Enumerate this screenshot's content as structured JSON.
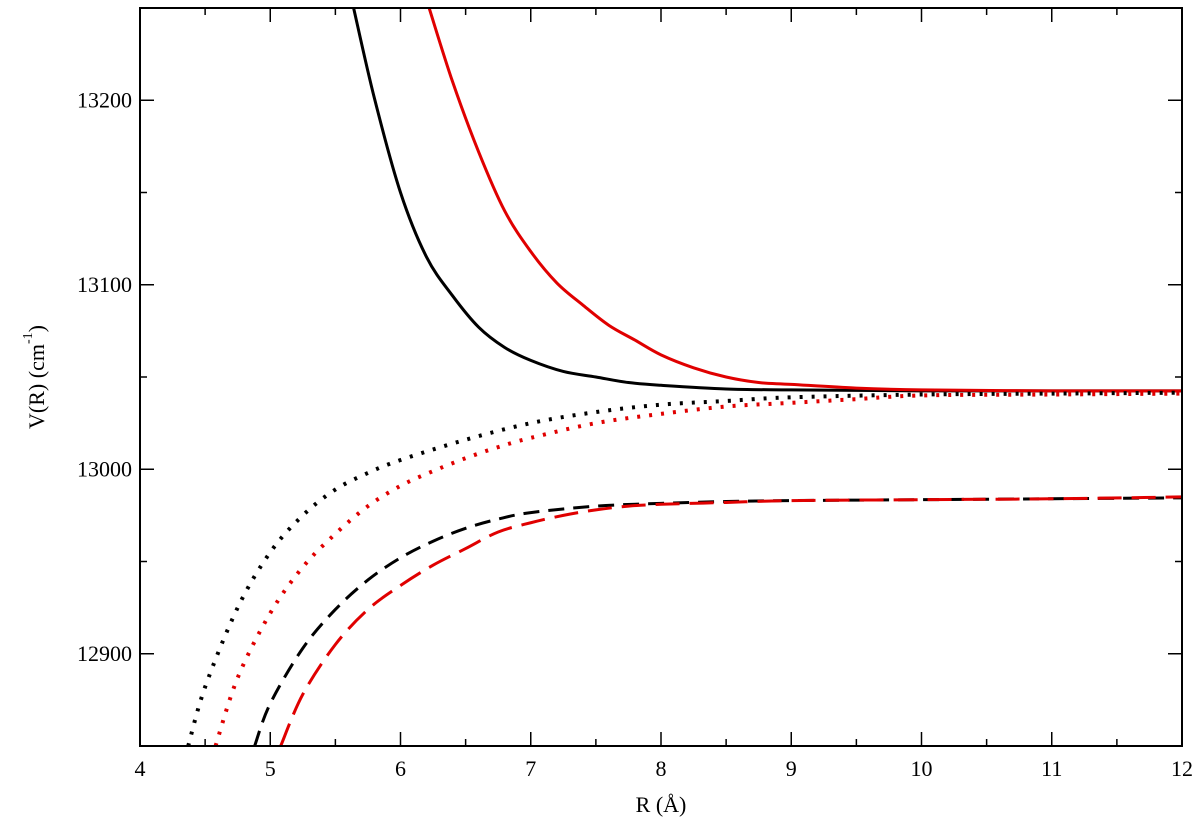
{
  "chart_data": {
    "type": "line",
    "title": "",
    "xlabel": "R (Å)",
    "ylabel": {
      "prefix": "V(R)  (cm",
      "superscript": "-1",
      "suffix": ")"
    },
    "xlim": [
      4,
      12
    ],
    "ylim": [
      12850,
      13250
    ],
    "x_ticks": [
      4,
      5,
      6,
      7,
      8,
      9,
      10,
      11,
      12
    ],
    "x_tick_labels": [
      "4",
      "5",
      "6",
      "7",
      "8",
      "9",
      "10",
      "11",
      "12"
    ],
    "y_ticks": [
      12900,
      13000,
      13100,
      13200
    ],
    "y_tick_labels": [
      "12900",
      "13000",
      "13100",
      "13200"
    ],
    "grid": false,
    "legend": "none",
    "series": [
      {
        "color": "#000000",
        "style": "solid",
        "points": [
          [
            5.64,
            13250
          ],
          [
            5.8,
            13201
          ],
          [
            6.0,
            13150
          ],
          [
            6.2,
            13115
          ],
          [
            6.4,
            13094
          ],
          [
            6.6,
            13077
          ],
          [
            6.8,
            13066
          ],
          [
            7.0,
            13059
          ],
          [
            7.25,
            13053
          ],
          [
            7.5,
            13050
          ],
          [
            7.75,
            13047
          ],
          [
            8.0,
            13045.5
          ],
          [
            8.5,
            13043.5
          ],
          [
            9.0,
            13043
          ],
          [
            10.0,
            13042.5
          ],
          [
            12.0,
            13042.5
          ]
        ]
      },
      {
        "color": "#e00000",
        "style": "solid",
        "points": [
          [
            6.22,
            13250
          ],
          [
            6.4,
            13210
          ],
          [
            6.6,
            13172
          ],
          [
            6.8,
            13140
          ],
          [
            7.0,
            13118
          ],
          [
            7.2,
            13101
          ],
          [
            7.4,
            13089
          ],
          [
            7.6,
            13078
          ],
          [
            7.8,
            13070
          ],
          [
            8.0,
            13062
          ],
          [
            8.25,
            13055
          ],
          [
            8.5,
            13050
          ],
          [
            8.75,
            13047
          ],
          [
            9.0,
            13046
          ],
          [
            9.5,
            13044
          ],
          [
            10.0,
            13043
          ],
          [
            11.0,
            13042.5
          ],
          [
            12.0,
            13042.5
          ]
        ]
      },
      {
        "color": "#000000",
        "style": "dotted",
        "points": [
          [
            4.37,
            12850
          ],
          [
            4.5,
            12882
          ],
          [
            4.75,
            12925
          ],
          [
            5.0,
            12955
          ],
          [
            5.25,
            12975
          ],
          [
            5.5,
            12989
          ],
          [
            5.75,
            12998
          ],
          [
            6.0,
            13005
          ],
          [
            6.5,
            13016
          ],
          [
            7.0,
            13025
          ],
          [
            7.5,
            13031
          ],
          [
            8.0,
            13035
          ],
          [
            8.5,
            13037
          ],
          [
            9.0,
            13039
          ],
          [
            10.0,
            13040.5
          ],
          [
            11.0,
            13041
          ],
          [
            12.0,
            13041.5
          ]
        ]
      },
      {
        "color": "#e00000",
        "style": "dotted",
        "points": [
          [
            4.58,
            12850
          ],
          [
            4.75,
            12887
          ],
          [
            5.0,
            12922
          ],
          [
            5.25,
            12947
          ],
          [
            5.5,
            12965
          ],
          [
            5.75,
            12980
          ],
          [
            6.0,
            12991
          ],
          [
            6.25,
            12999
          ],
          [
            6.5,
            13006
          ],
          [
            6.75,
            13012
          ],
          [
            7.0,
            13017
          ],
          [
            7.5,
            13025
          ],
          [
            8.0,
            13030
          ],
          [
            8.5,
            13034
          ],
          [
            9.0,
            13036
          ],
          [
            9.5,
            13038
          ],
          [
            10.0,
            13040
          ],
          [
            11.0,
            13040.5
          ],
          [
            12.0,
            13041
          ]
        ]
      },
      {
        "color": "#000000",
        "style": "dashed",
        "points": [
          [
            4.88,
            12850
          ],
          [
            5.0,
            12873
          ],
          [
            5.25,
            12903
          ],
          [
            5.5,
            12924
          ],
          [
            5.75,
            12940
          ],
          [
            6.0,
            12952
          ],
          [
            6.25,
            12961
          ],
          [
            6.5,
            12968
          ],
          [
            6.75,
            12973
          ],
          [
            7.0,
            12976.5
          ],
          [
            7.5,
            12980
          ],
          [
            8.0,
            12981.5
          ],
          [
            8.5,
            12982.5
          ],
          [
            9.0,
            12983
          ],
          [
            10.0,
            12983.5
          ],
          [
            11.0,
            12984
          ],
          [
            12.0,
            12984.5
          ]
        ]
      },
      {
        "color": "#e00000",
        "style": "long-dashed",
        "points": [
          [
            5.08,
            12850
          ],
          [
            5.25,
            12878
          ],
          [
            5.5,
            12905
          ],
          [
            5.75,
            12924
          ],
          [
            6.0,
            12937
          ],
          [
            6.25,
            12948
          ],
          [
            6.5,
            12957
          ],
          [
            6.75,
            12966
          ],
          [
            7.0,
            12971
          ],
          [
            7.25,
            12975
          ],
          [
            7.5,
            12978
          ],
          [
            7.75,
            12980
          ],
          [
            8.0,
            12981
          ],
          [
            8.5,
            12982
          ],
          [
            9.0,
            12983
          ],
          [
            10.0,
            12983.5
          ],
          [
            11.0,
            12984
          ],
          [
            12.0,
            12985
          ]
        ]
      }
    ]
  }
}
